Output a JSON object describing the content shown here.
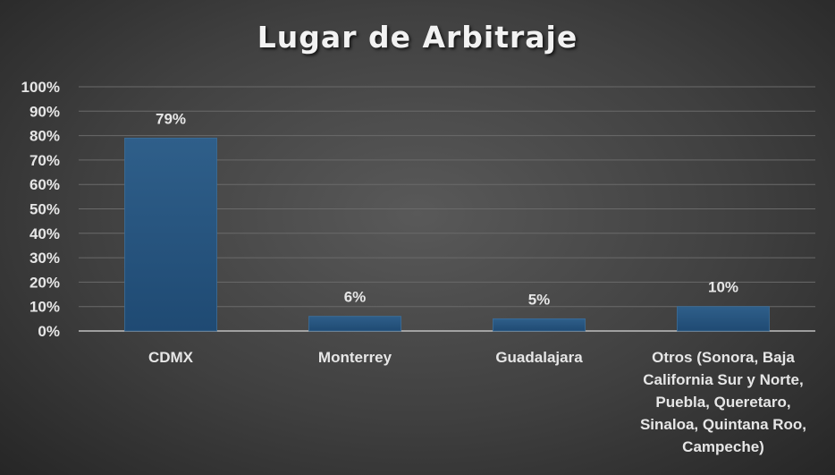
{
  "chart_data": {
    "type": "bar",
    "title": "Lugar de Arbitraje",
    "categories": [
      [
        "CDMX"
      ],
      [
        "Monterrey"
      ],
      [
        "Guadalajara"
      ],
      [
        "Otros (Sonora, Baja",
        "California Sur y Norte,",
        "Puebla, Queretaro,",
        "Sinaloa, Quintana Roo,",
        "Campeche)"
      ]
    ],
    "values": [
      79,
      6,
      5,
      10
    ],
    "data_labels": [
      "79%",
      "6%",
      "5%",
      "10%"
    ],
    "y_ticks": [
      "0%",
      "10%",
      "20%",
      "30%",
      "40%",
      "50%",
      "60%",
      "70%",
      "80%",
      "90%",
      "100%"
    ],
    "ylim": [
      0,
      100
    ],
    "grid": true,
    "colors": {
      "bar_top": "#2f5f8a",
      "bar_bottom": "#1f4a73",
      "text": "#e6e6e6"
    }
  }
}
